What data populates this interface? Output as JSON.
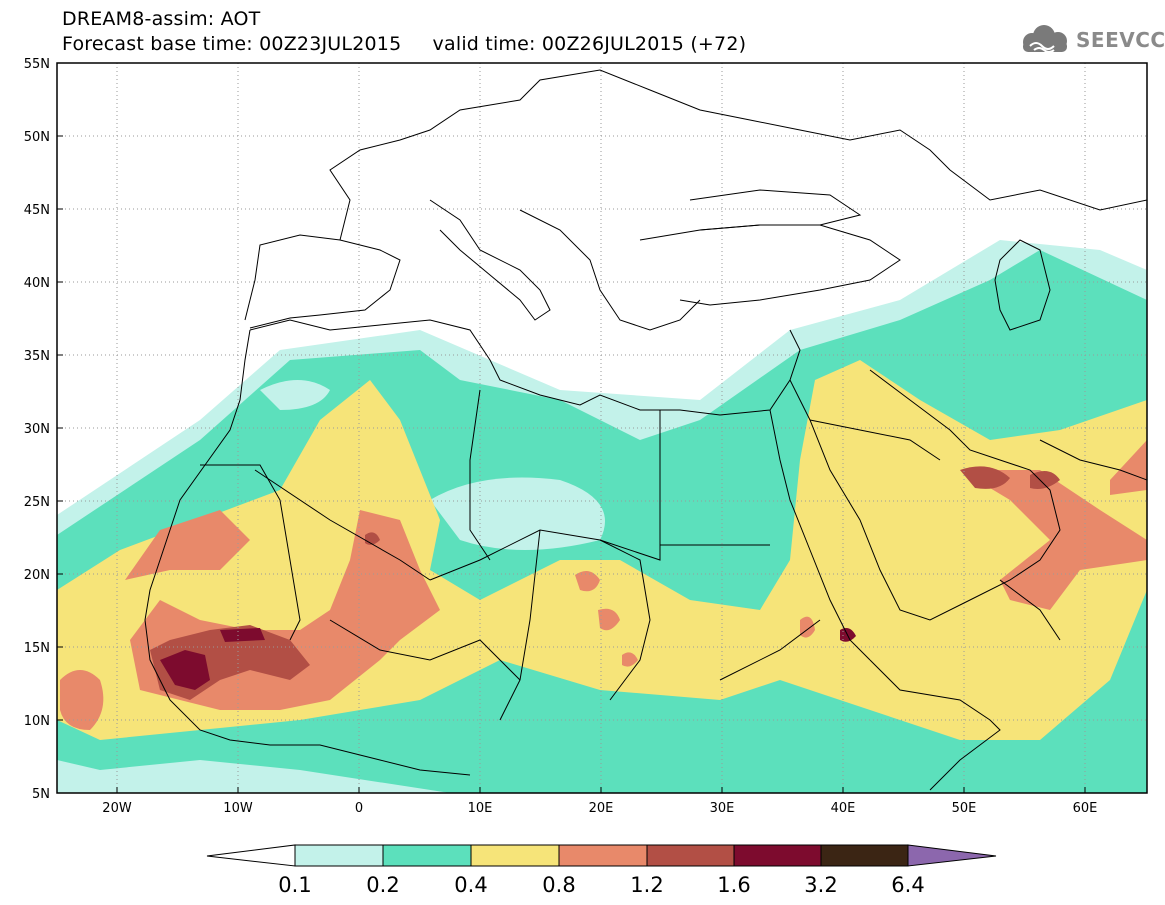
{
  "header": {
    "line1": "DREAM8-assim: AOT",
    "line2": "Forecast base time: 00Z23JUL2015     valid time: 00Z26JUL2015 (+72)"
  },
  "logo": {
    "text": "SEEVCCC",
    "icon": "cloud-logo-icon",
    "color": "#7a7a7a"
  },
  "map": {
    "lat_ticks": [
      "55N",
      "50N",
      "45N",
      "40N",
      "35N",
      "30N",
      "25N",
      "20N",
      "15N",
      "10N",
      "5N"
    ],
    "lon_ticks": [
      "20W",
      "10W",
      "0",
      "10E",
      "20E",
      "30E",
      "40E",
      "50E",
      "60E"
    ],
    "lat_range": [
      5,
      55
    ],
    "lon_range": [
      -25,
      65
    ]
  },
  "colorbar": {
    "labels": [
      "0.1",
      "0.2",
      "0.4",
      "0.8",
      "1.2",
      "1.6",
      "3.2",
      "6.4"
    ],
    "colors": [
      "#ffffff",
      "#c3f2ea",
      "#5ce0bc",
      "#f6e479",
      "#e8896a",
      "#b24f45",
      "#7d0b2e",
      "#3b2514",
      "#8c67ad"
    ]
  }
}
